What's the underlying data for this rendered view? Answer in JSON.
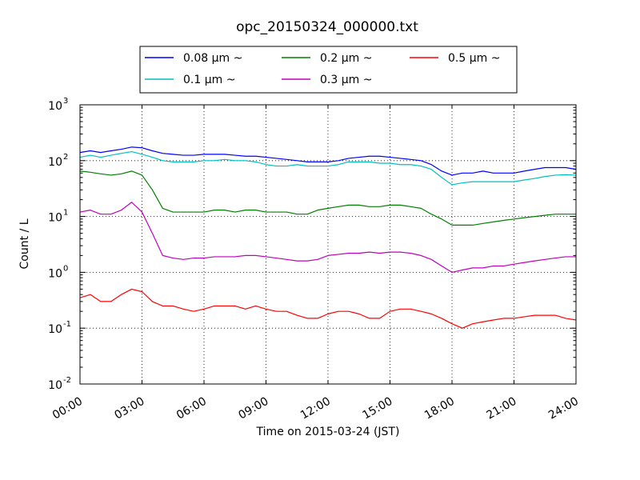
{
  "chart_data": {
    "type": "line",
    "title": "opc_20150324_000000.txt",
    "xlabel": "Time on 2015-03-24 (JST)",
    "ylabel": "Count / L",
    "yscale": "log",
    "ylim": [
      0.01,
      1000
    ],
    "xlim": [
      "00:00",
      "24:00"
    ],
    "grid": true,
    "legend_position": "top",
    "x_tick_labels": [
      "00:00",
      "03:00",
      "06:00",
      "09:00",
      "12:00",
      "15:00",
      "18:00",
      "21:00",
      "24:00"
    ],
    "y_tick_labels": [
      {
        "base": "10",
        "exp": "-2"
      },
      {
        "base": "10",
        "exp": "-1"
      },
      {
        "base": "10",
        "exp": "0"
      },
      {
        "base": "10",
        "exp": "1"
      },
      {
        "base": "10",
        "exp": "2"
      },
      {
        "base": "10",
        "exp": "3"
      }
    ],
    "x": [
      "00:00",
      "00:30",
      "01:00",
      "01:30",
      "02:00",
      "02:30",
      "03:00",
      "03:30",
      "04:00",
      "04:30",
      "05:00",
      "05:30",
      "06:00",
      "06:30",
      "07:00",
      "07:30",
      "08:00",
      "08:30",
      "09:00",
      "09:30",
      "10:00",
      "10:30",
      "11:00",
      "11:30",
      "12:00",
      "12:30",
      "13:00",
      "13:30",
      "14:00",
      "14:30",
      "15:00",
      "15:30",
      "16:00",
      "16:30",
      "17:00",
      "17:30",
      "18:00",
      "18:30",
      "19:00",
      "19:30",
      "20:00",
      "20:30",
      "21:00",
      "21:30",
      "22:00",
      "22:30",
      "23:00",
      "23:30",
      "24:00"
    ],
    "series": [
      {
        "name": "0.08 μm ~",
        "color": "#0000ff",
        "values": [
          140,
          150,
          140,
          150,
          160,
          175,
          170,
          150,
          135,
          130,
          125,
          125,
          130,
          130,
          130,
          125,
          120,
          120,
          115,
          110,
          105,
          100,
          95,
          95,
          95,
          100,
          110,
          115,
          120,
          120,
          115,
          110,
          105,
          100,
          85,
          65,
          55,
          60,
          60,
          65,
          60,
          60,
          60,
          65,
          70,
          75,
          75,
          75,
          70
        ]
      },
      {
        "name": "0.1 μm ~",
        "color": "#00bfbf",
        "values": [
          115,
          125,
          115,
          125,
          135,
          145,
          130,
          115,
          100,
          95,
          95,
          95,
          100,
          100,
          105,
          100,
          100,
          95,
          85,
          80,
          80,
          85,
          80,
          80,
          80,
          85,
          95,
          95,
          95,
          90,
          90,
          85,
          85,
          80,
          70,
          50,
          37,
          40,
          42,
          42,
          42,
          42,
          42,
          45,
          48,
          52,
          55,
          56,
          55
        ]
      },
      {
        "name": "0.2 μm ~",
        "color": "#008000",
        "values": [
          65,
          62,
          58,
          55,
          58,
          65,
          55,
          30,
          14,
          12,
          12,
          12,
          12,
          13,
          13,
          12,
          13,
          13,
          12,
          12,
          12,
          11,
          11,
          13,
          14,
          15,
          16,
          16,
          15,
          15,
          16,
          16,
          15,
          14,
          11,
          9,
          7,
          7,
          7,
          7.5,
          8,
          8.5,
          9,
          9.5,
          10,
          10.5,
          11,
          11,
          11
        ]
      },
      {
        "name": "0.3 μm ~",
        "color": "#bf00bf",
        "values": [
          12,
          13,
          11,
          11,
          13,
          18,
          12,
          5,
          2,
          1.8,
          1.7,
          1.8,
          1.8,
          1.9,
          1.9,
          1.9,
          2,
          2,
          1.9,
          1.8,
          1.7,
          1.6,
          1.6,
          1.7,
          2,
          2.1,
          2.2,
          2.2,
          2.3,
          2.2,
          2.3,
          2.3,
          2.2,
          2,
          1.7,
          1.3,
          1,
          1.1,
          1.2,
          1.2,
          1.3,
          1.3,
          1.4,
          1.5,
          1.6,
          1.7,
          1.8,
          1.9,
          1.9
        ]
      },
      {
        "name": "0.5 μm ~",
        "color": "#ff0000",
        "values": [
          0.35,
          0.4,
          0.3,
          0.3,
          0.4,
          0.5,
          0.45,
          0.3,
          0.25,
          0.25,
          0.22,
          0.2,
          0.22,
          0.25,
          0.25,
          0.25,
          0.22,
          0.25,
          0.22,
          0.2,
          0.2,
          0.17,
          0.15,
          0.15,
          0.18,
          0.2,
          0.2,
          0.18,
          0.15,
          0.15,
          0.2,
          0.22,
          0.22,
          0.2,
          0.18,
          0.15,
          0.12,
          0.1,
          0.12,
          0.13,
          0.14,
          0.15,
          0.15,
          0.16,
          0.17,
          0.17,
          0.17,
          0.15,
          0.14
        ]
      }
    ]
  }
}
